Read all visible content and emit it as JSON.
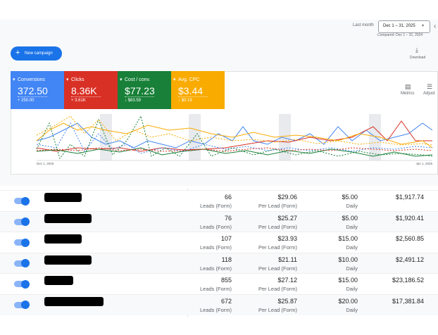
{
  "header": {
    "date_label": "Last month",
    "date_range": "Dec 1 – 31, 2025",
    "compared": "Compared: Dec 1 – 31, 2024"
  },
  "toolbar": {
    "new_campaign": "New campaign",
    "download": "Download",
    "metrics": "Metrics",
    "adjust": "Adjust"
  },
  "metrics": [
    {
      "name": "Conversions",
      "value": "372.50",
      "change": "+ 250.00"
    },
    {
      "name": "Clicks",
      "value": "8.36K",
      "change": "+ 3.61K"
    },
    {
      "name": "Cost / conv.",
      "value": "$77.23",
      "change": "↓ $83.59"
    },
    {
      "name": "Avg. CPC",
      "value": "$3.44",
      "change": "↓ $0.19"
    }
  ],
  "chart": {
    "start": "Dec 1, 2025",
    "end": "Jan 1, 2026"
  },
  "table": {
    "rows": [
      [
        "66",
        "Leads (Form)",
        "$29.06",
        "Per Lead (Form)",
        "$5.00",
        "Daily",
        "$1,917.74"
      ],
      [
        "76",
        "Leads (Form)",
        "$25.27",
        "Per Lead (Form)",
        "$5.00",
        "Daily",
        "$1,920.41"
      ],
      [
        "107",
        "Leads (Form)",
        "$23.93",
        "Per Lead (Form)",
        "$15.00",
        "Daily",
        "$2,560.85"
      ],
      [
        "118",
        "Leads (Form)",
        "$21.11",
        "Per Lead (Form)",
        "$10.00",
        "Daily",
        "$2,491.12"
      ],
      [
        "855",
        "Leads (Form)",
        "$27.12",
        "Per Lead (Form)",
        "$15.00",
        "Daily",
        "$23,186.52"
      ],
      [
        "672",
        "Leads (Form)",
        "$25.87",
        "Per Lead (Form)",
        "$20.00",
        "Daily",
        "$17,381.84"
      ]
    ]
  }
}
